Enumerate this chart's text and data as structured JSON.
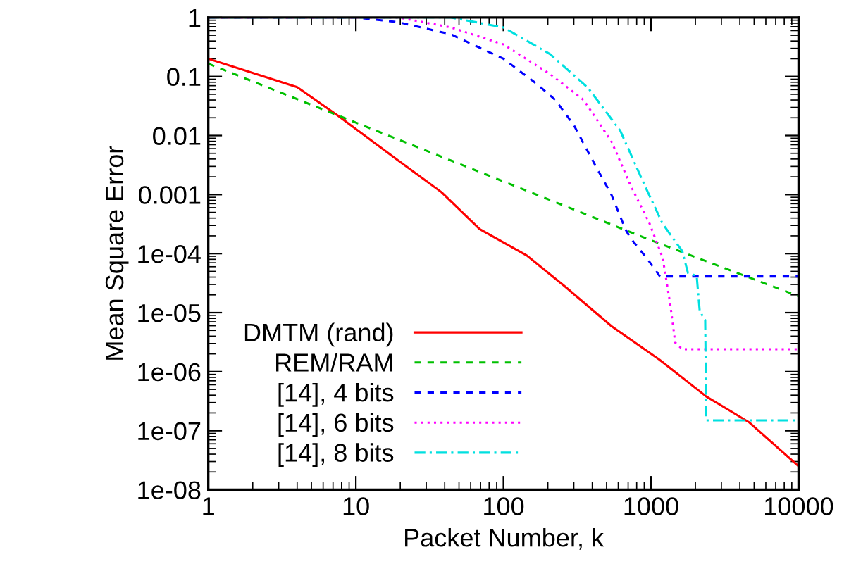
{
  "chart_data": {
    "type": "line",
    "xlabel": "Packet Number, k",
    "ylabel": "Mean Square Error",
    "log": "xy",
    "grid": false,
    "legend": "bottom left",
    "xlim": [
      1,
      10000
    ],
    "xticks": [
      1,
      10,
      100,
      1000,
      10000
    ],
    "ylim": [
      1e-08,
      1
    ],
    "yticks": [
      {
        "value": 1,
        "label": "1"
      },
      {
        "value": 0.1,
        "label": "0.1"
      },
      {
        "value": 0.01,
        "label": "0.01"
      },
      {
        "value": 0.001,
        "label": "0.001"
      },
      {
        "value": 0.0001,
        "label": "1e-04"
      },
      {
        "value": 1e-05,
        "label": "1e-05"
      },
      {
        "value": 1e-06,
        "label": "1e-06"
      },
      {
        "value": 1e-07,
        "label": "1e-07"
      },
      {
        "value": 1e-08,
        "label": "1e-08"
      }
    ],
    "series": [
      {
        "name": "DMTM (rand)",
        "color": "#ff0000",
        "line_style": "solid",
        "x": [
          1,
          4,
          7.5,
          19.6,
          38,
          69,
          144,
          260,
          540,
          1140,
          2370,
          4600,
          10000
        ],
        "values": [
          0.2,
          0.066,
          0.022,
          0.0037,
          0.0011,
          0.00026,
          9.3e-05,
          2.8e-05,
          5.9e-06,
          1.6e-06,
          3.8e-07,
          1.4e-07,
          2.5e-08
        ]
      },
      {
        "name": "REM/RAM",
        "color": "#00c000",
        "line_style": "dashed",
        "x": [
          1,
          10,
          100,
          1000,
          10000
        ],
        "values": [
          0.165,
          0.0166,
          0.00167,
          0.000168,
          1.9e-05
        ]
      },
      {
        "name": "[14], 4 bits",
        "color": "#0000ff",
        "line_style": "dashed",
        "x": [
          1,
          10,
          19.5,
          44,
          100,
          166,
          225,
          300,
          420,
          540,
          670,
          730,
          950,
          1150,
          10000
        ],
        "values": [
          1,
          1,
          0.83,
          0.52,
          0.2,
          0.077,
          0.04,
          0.015,
          0.0031,
          0.00099,
          0.00026,
          0.00018,
          8e-05,
          4.1e-05,
          4.1e-05
        ]
      },
      {
        "name": "[14], 6 bits",
        "color": "#ff00ff",
        "line_style": "dotted",
        "x": [
          1,
          19.5,
          44,
          100,
          207,
          350,
          540,
          730,
          980,
          1200,
          1350,
          1460,
          1630,
          10000
        ],
        "values": [
          1,
          1,
          0.68,
          0.35,
          0.11,
          0.04,
          0.0079,
          0.0014,
          0.00032,
          8.5e-05,
          1.4e-05,
          3.1e-06,
          2.4e-06,
          2.4e-06
        ]
      },
      {
        "name": "[14], 8 bits",
        "color": "#00e0e0",
        "line_style": "dashdot",
        "x": [
          1,
          44,
          100,
          207,
          375,
          620,
          910,
          1200,
          1630,
          1780,
          2040,
          2140,
          2330,
          2370,
          10000
        ],
        "values": [
          1,
          1,
          0.68,
          0.24,
          0.064,
          0.012,
          0.0014,
          0.00032,
          0.00011,
          4.7e-05,
          4.2e-05,
          1.05e-05,
          7.5e-06,
          1.5e-07,
          1.5e-07
        ]
      }
    ]
  }
}
